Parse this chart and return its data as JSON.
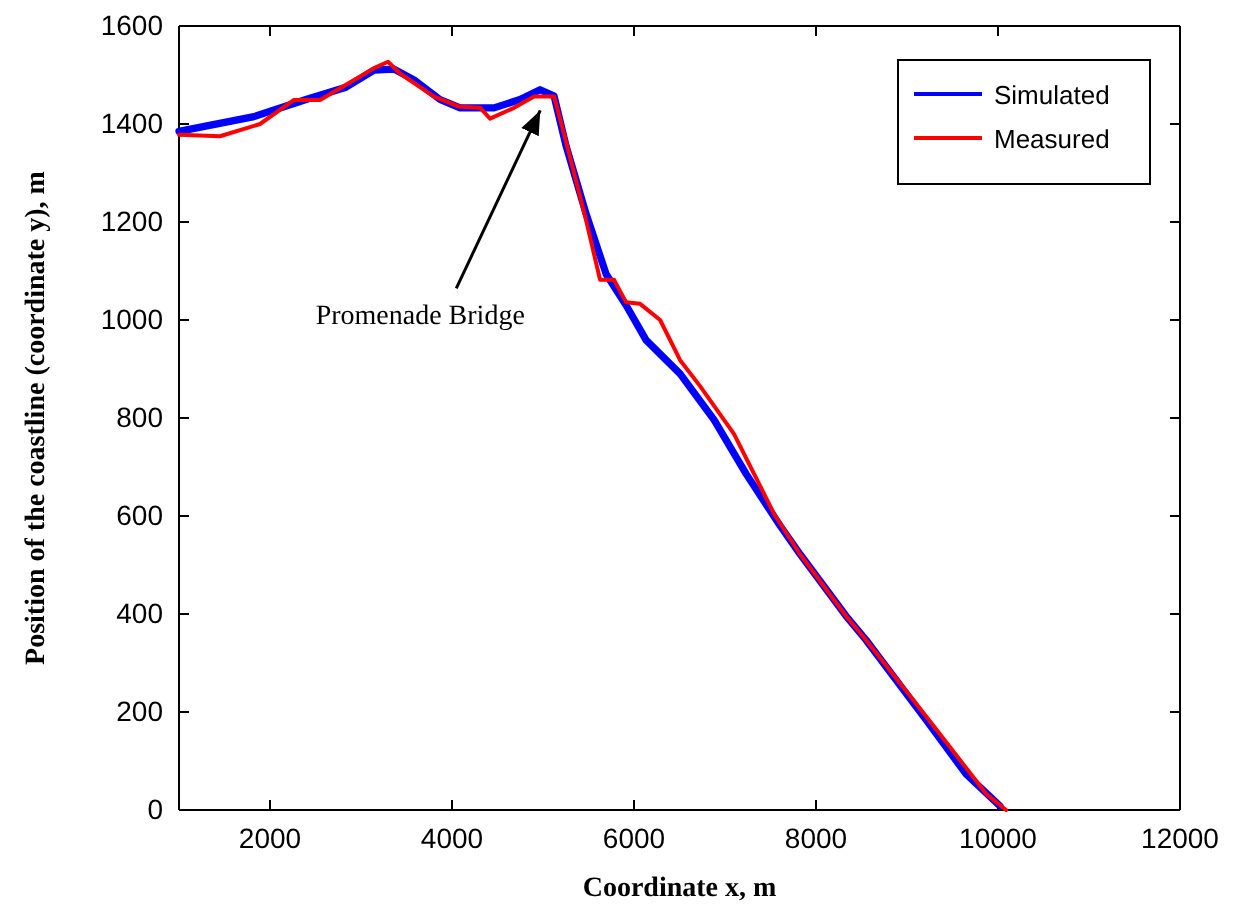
{
  "chart_data": {
    "type": "line",
    "xlabel": "Coordinate x, m",
    "ylabel": "Position of the coastline (coordinate y), m",
    "xlim": [
      1000,
      12000
    ],
    "xticks": [
      2000,
      4000,
      6000,
      8000,
      10000,
      12000
    ],
    "ylim": [
      0,
      1600
    ],
    "yticks": [
      0,
      200,
      400,
      600,
      800,
      1000,
      1200,
      1400,
      1600
    ],
    "grid": false,
    "legend": "top right",
    "line_style": "solid",
    "marker": "none",
    "annotations": [
      {
        "text": "Promenade Bridge",
        "x": 4970,
        "y": 1440
      }
    ],
    "series": [
      {
        "name": "Simulated",
        "color": "#0000ff",
        "x": [
          1000,
          1824,
          2396,
          2835,
          3143,
          3363,
          3583,
          3868,
          4088,
          4462,
          4748,
          4968,
          5122,
          5254,
          5473,
          5693,
          5913,
          6133,
          6507,
          6880,
          7232,
          7606,
          7825,
          8330,
          8550,
          9210,
          9650,
          10023
        ],
        "values": [
          1385,
          1415,
          1450,
          1475,
          1510,
          1512,
          1490,
          1450,
          1433,
          1433,
          1450,
          1470,
          1457,
          1355,
          1217,
          1094,
          1030,
          959,
          890,
          796,
          686,
          580,
          522,
          396,
          347,
          184,
          73,
          8
        ]
      },
      {
        "name": "Measured",
        "color": "#ff0000",
        "x": [
          1000,
          1450,
          1890,
          2264,
          2550,
          2990,
          3143,
          3297,
          3429,
          3803,
          4088,
          4310,
          4418,
          4682,
          4902,
          5122,
          5231,
          5473,
          5627,
          5781,
          5913,
          6067,
          6287,
          6507,
          6726,
          7100,
          7540,
          7825,
          8330,
          8550,
          9295,
          9870,
          10089
        ],
        "values": [
          1378,
          1375,
          1400,
          1449,
          1449,
          1497,
          1514,
          1527,
          1503,
          1456,
          1435,
          1433,
          1411,
          1433,
          1456,
          1456,
          1380,
          1204,
          1082,
          1082,
          1036,
          1033,
          1000,
          918,
          865,
          767,
          604,
          522,
          396,
          347,
          171,
          33,
          0
        ]
      }
    ]
  }
}
